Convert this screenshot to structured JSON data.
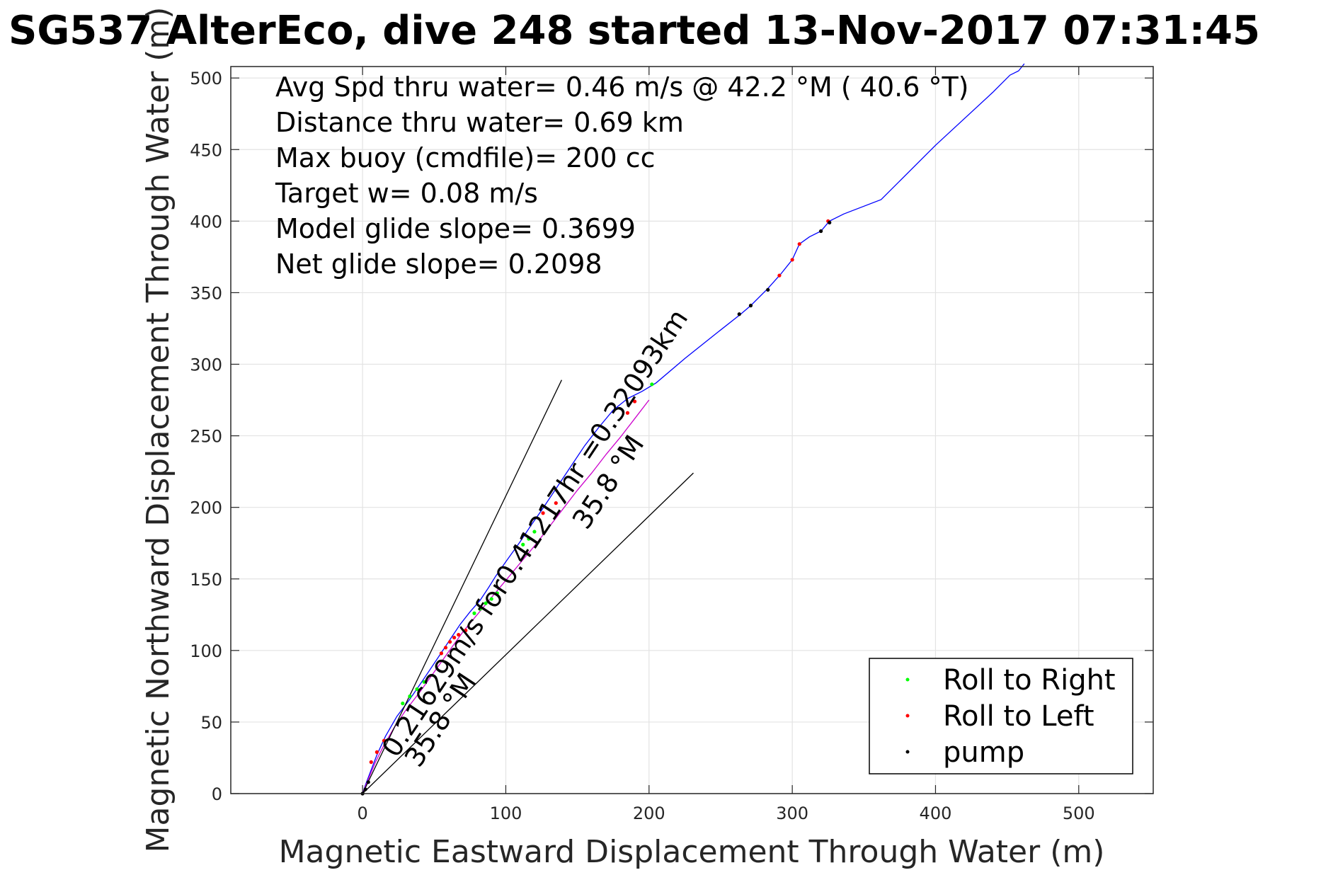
{
  "chart_data": {
    "type": "line",
    "title": "SG537 AlterEco, dive 248 started 13-Nov-2017 07:31:45",
    "xlabel": "Magnetic Eastward Displacement Through Water (m)",
    "ylabel": "Magnetic Northward Displacement Through Water (m)",
    "xlim": [
      -92,
      552
    ],
    "ylim": [
      0,
      508
    ],
    "x_ticks": [
      0,
      100,
      200,
      300,
      400,
      500
    ],
    "y_ticks": [
      0,
      50,
      100,
      150,
      200,
      250,
      300,
      350,
      400,
      450,
      500
    ],
    "grid": true,
    "legend_position": "bottom-right",
    "info_lines": [
      "Avg Spd thru water=  0.46 m/s @  42.2 °M ( 40.6 °T)",
      "Distance thru water=  0.69 km",
      "Max buoy (cmdfile)= 200 cc",
      "Target w= 0.08 m/s",
      "Model glide slope= 0.3699",
      "Net glide slope= 0.2098"
    ],
    "annotations": [
      "0.21629m/s for0.41217hr =0.32093km",
      "35.8 °M",
      "35.8 °M"
    ],
    "series": [
      {
        "name": "",
        "color": "#0000ff",
        "x": [
          0,
          2,
          5,
          10,
          16,
          24,
          33,
          42,
          52,
          60,
          68,
          75,
          82,
          88,
          93,
          100,
          110,
          118,
          125,
          135,
          145,
          155,
          165,
          175,
          185,
          195,
          205,
          225,
          245,
          264,
          271,
          283,
          292,
          300,
          305,
          312,
          320,
          326,
          336,
          362,
          400,
          440,
          452,
          458,
          462
        ],
        "y": [
          0,
          6,
          14,
          27,
          40,
          54,
          66,
          79,
          94,
          106,
          118,
          127,
          135,
          144,
          152,
          162,
          176,
          188,
          198,
          213,
          228,
          243,
          256,
          268,
          276,
          281,
          287,
          304,
          320,
          335,
          341,
          353,
          363,
          373,
          384,
          389,
          393,
          400,
          405,
          415,
          453,
          490,
          502,
          505,
          510
        ]
      },
      {
        "name": "",
        "color": "#cc00cc",
        "x": [
          0,
          4,
          9,
          15,
          22,
          30,
          40,
          50,
          60,
          70,
          80,
          90,
          100,
          110,
          120,
          130,
          140,
          150,
          160,
          170,
          180,
          190,
          200
        ],
        "y": [
          0,
          10,
          22,
          34,
          46,
          58,
          71,
          85,
          99,
          113,
          125,
          137,
          149,
          161,
          173,
          186,
          199,
          212,
          224,
          237,
          249,
          262,
          275
        ]
      },
      {
        "name": "",
        "color": "#000000",
        "x": [
          0,
          139
        ],
        "y": [
          0,
          289
        ]
      },
      {
        "name": "",
        "color": "#000000",
        "x": [
          0,
          231
        ],
        "y": [
          0,
          224
        ]
      },
      {
        "name": "Roll to Right",
        "type": "scatter",
        "color": "#00ff00",
        "x": [
          28,
          33,
          38,
          43,
          78,
          82,
          86,
          90,
          94,
          112,
          116,
          120,
          202
        ],
        "y": [
          63,
          68,
          73,
          78,
          126,
          129,
          133,
          136,
          140,
          174,
          178,
          183,
          286
        ]
      },
      {
        "name": "Roll to Left",
        "type": "scatter",
        "color": "#ff0000",
        "x": [
          6,
          10,
          15,
          55,
          58,
          61,
          64,
          67,
          72,
          126,
          135,
          185,
          190,
          291,
          300,
          305,
          325
        ],
        "y": [
          22,
          29,
          37,
          98,
          102,
          106,
          109,
          111,
          114,
          196,
          203,
          266,
          274,
          362,
          373,
          384,
          400
        ]
      },
      {
        "name": "pump",
        "type": "scatter",
        "color": "#000000",
        "x": [
          0,
          2,
          4,
          263,
          271,
          283,
          320,
          326
        ],
        "y": [
          0,
          3,
          8,
          335,
          341,
          352,
          393,
          399
        ]
      }
    ]
  }
}
